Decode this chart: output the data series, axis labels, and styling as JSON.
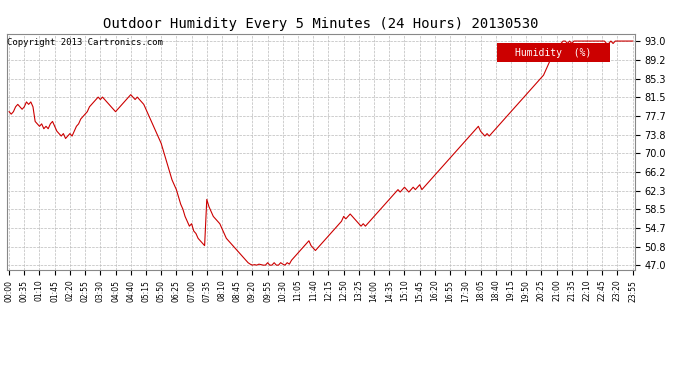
{
  "title": "Outdoor Humidity Every 5 Minutes (24 Hours) 20130530",
  "copyright": "Copyright 2013 Cartronics.com",
  "legend_label": "Humidity  (%)",
  "line_color": "#cc0000",
  "legend_bg": "#cc0000",
  "legend_text_color": "#ffffff",
  "bg_color": "#ffffff",
  "grid_color": "#bbbbbb",
  "yticks": [
    47.0,
    50.8,
    54.7,
    58.5,
    62.3,
    66.2,
    70.0,
    73.8,
    77.7,
    81.5,
    85.3,
    89.2,
    93.0
  ],
  "ylim": [
    46.0,
    94.5
  ],
  "num_points": 288,
  "x_tick_interval": 6,
  "humidity_data": [
    78.5,
    78.0,
    78.5,
    79.5,
    80.0,
    79.5,
    79.0,
    79.5,
    80.5,
    80.0,
    80.5,
    79.5,
    76.5,
    76.0,
    75.5,
    76.0,
    75.0,
    75.5,
    75.0,
    76.0,
    76.5,
    75.5,
    74.5,
    74.0,
    73.5,
    74.0,
    73.0,
    73.5,
    74.0,
    73.5,
    74.5,
    75.5,
    76.0,
    77.0,
    77.5,
    78.0,
    78.5,
    79.5,
    80.0,
    80.5,
    81.0,
    81.5,
    81.0,
    81.5,
    81.0,
    80.5,
    80.0,
    79.5,
    79.0,
    78.5,
    79.0,
    79.5,
    80.0,
    80.5,
    81.0,
    81.5,
    82.0,
    81.5,
    81.0,
    81.5,
    81.0,
    80.5,
    80.0,
    79.0,
    78.0,
    77.0,
    76.0,
    75.0,
    74.0,
    73.0,
    72.0,
    70.5,
    69.0,
    67.5,
    66.0,
    64.5,
    63.5,
    62.5,
    61.0,
    59.5,
    58.5,
    57.0,
    56.0,
    55.0,
    55.5,
    54.0,
    53.5,
    52.5,
    52.0,
    51.5,
    51.0,
    60.5,
    59.0,
    58.0,
    57.0,
    56.5,
    56.0,
    55.5,
    54.5,
    53.5,
    52.5,
    52.0,
    51.5,
    51.0,
    50.5,
    50.0,
    49.5,
    49.0,
    48.5,
    48.0,
    47.5,
    47.2,
    47.0,
    47.1,
    47.0,
    47.2,
    47.1,
    47.0,
    47.0,
    47.5,
    47.0,
    47.0,
    47.5,
    47.0,
    47.0,
    47.5,
    47.2,
    47.0,
    47.5,
    47.2,
    48.0,
    48.5,
    49.0,
    49.5,
    50.0,
    50.5,
    51.0,
    51.5,
    52.0,
    51.0,
    50.5,
    50.0,
    50.5,
    51.0,
    51.5,
    52.0,
    52.5,
    53.0,
    53.5,
    54.0,
    54.5,
    55.0,
    55.5,
    56.0,
    57.0,
    56.5,
    57.0,
    57.5,
    57.0,
    56.5,
    56.0,
    55.5,
    55.0,
    55.5,
    55.0,
    55.5,
    56.0,
    56.5,
    57.0,
    57.5,
    58.0,
    58.5,
    59.0,
    59.5,
    60.0,
    60.5,
    61.0,
    61.5,
    62.0,
    62.5,
    62.0,
    62.5,
    63.0,
    62.5,
    62.0,
    62.5,
    63.0,
    62.5,
    63.0,
    63.5,
    62.5,
    63.0,
    63.5,
    64.0,
    64.5,
    65.0,
    65.5,
    66.0,
    66.5,
    67.0,
    67.5,
    68.0,
    68.5,
    69.0,
    69.5,
    70.0,
    70.5,
    71.0,
    71.5,
    72.0,
    72.5,
    73.0,
    73.5,
    74.0,
    74.5,
    75.0,
    75.5,
    74.5,
    74.0,
    73.5,
    74.0,
    73.5,
    74.0,
    74.5,
    75.0,
    75.5,
    76.0,
    76.5,
    77.0,
    77.5,
    78.0,
    78.5,
    79.0,
    79.5,
    80.0,
    80.5,
    81.0,
    81.5,
    82.0,
    82.5,
    83.0,
    83.5,
    84.0,
    84.5,
    85.0,
    85.5,
    86.0,
    87.0,
    88.0,
    89.0,
    90.0,
    91.0,
    91.5,
    92.0,
    92.5,
    93.0,
    93.0,
    92.5,
    93.0,
    92.5,
    93.0,
    93.0,
    93.0,
    93.0,
    93.0,
    93.0,
    93.0,
    93.0,
    93.0,
    93.0,
    93.0,
    93.0,
    93.0,
    93.0,
    93.0,
    92.5,
    92.5,
    93.0,
    92.5,
    93.0,
    93.0,
    93.0,
    93.0,
    93.0,
    93.0,
    93.0,
    93.0,
    93.0
  ],
  "xtick_labels": [
    "00:00",
    "00:35",
    "01:10",
    "01:45",
    "02:20",
    "02:55",
    "03:30",
    "04:05",
    "04:40",
    "05:15",
    "05:50",
    "06:25",
    "07:00",
    "07:35",
    "08:10",
    "08:45",
    "09:20",
    "09:55",
    "10:30",
    "11:05",
    "11:40",
    "12:15",
    "12:50",
    "13:25",
    "14:00",
    "14:35",
    "15:10",
    "15:45",
    "16:20",
    "16:55",
    "17:30",
    "18:05",
    "18:40",
    "19:15",
    "19:50",
    "20:25",
    "21:00",
    "21:35",
    "22:10",
    "22:45",
    "23:20",
    "23:55"
  ]
}
